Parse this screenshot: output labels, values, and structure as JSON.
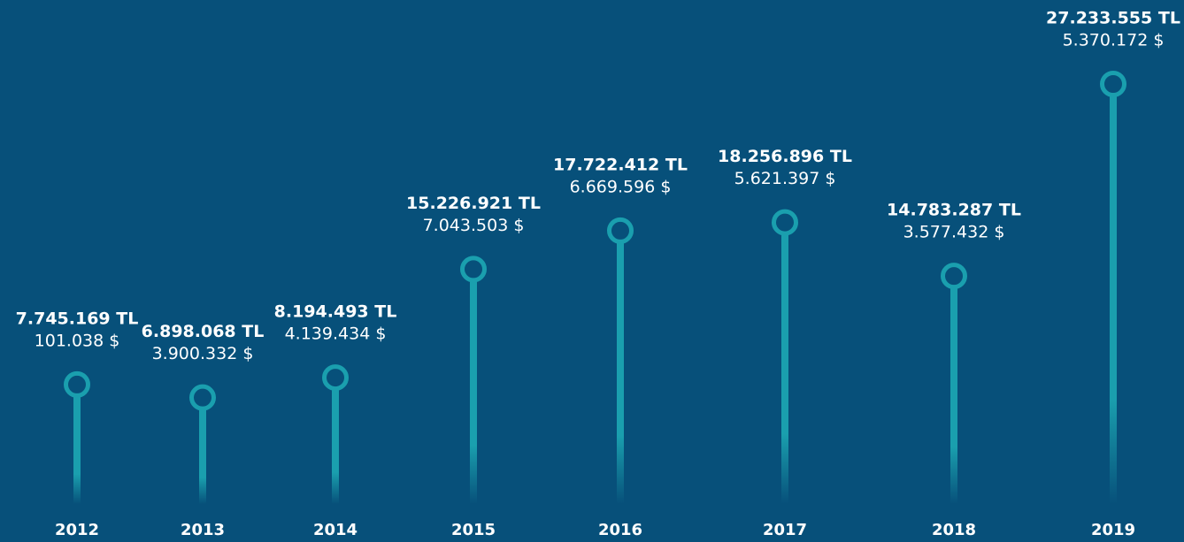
{
  "chart_data": {
    "type": "lollipop",
    "categories": [
      "2012",
      "2013",
      "2014",
      "2015",
      "2016",
      "2017",
      "2018",
      "2019"
    ],
    "series": [
      {
        "name": "TL",
        "color": "#1a9fae",
        "values": [
          7745169,
          6898068,
          8194493,
          15226921,
          17722412,
          18256896,
          14783287,
          27233555
        ],
        "value_labels": [
          "7.745.169 TL",
          "6.898.068 TL",
          "8.194.493 TL",
          "15.226.921 TL",
          "17.722.412 TL",
          "18.256.896 TL",
          "14.783.287 TL",
          "27.233.555 TL"
        ]
      },
      {
        "name": "$",
        "values": [
          101038,
          3900332,
          4139434,
          7043503,
          6669596,
          5621397,
          3577432,
          5370172
        ],
        "value_labels": [
          "101.038 $",
          "3.900.332 $",
          "4.139.434 $",
          "7.043.503 $",
          "6.669.596 $",
          "5.621.397 $",
          "3.577.432 $",
          "5.370.172 $"
        ]
      }
    ]
  }
}
